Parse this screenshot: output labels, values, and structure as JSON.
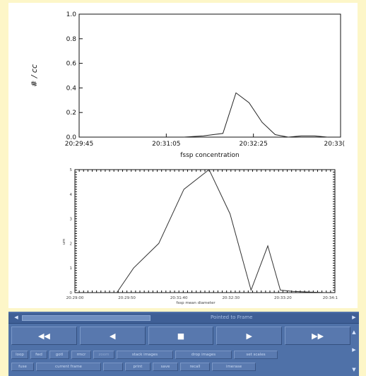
{
  "chart_data": [
    {
      "type": "line",
      "xlabel": "fssp concentration",
      "ylabel": "# / cc",
      "x_tick_labels": [
        "20:29:45",
        "20:31:05",
        "20:32:25",
        "20:33("
      ],
      "y_tick_labels": [
        "0.0",
        "0.2",
        "0.4",
        "0.6",
        "0.8",
        "1.0"
      ],
      "xlim": [
        "20:29:45",
        "20:33:05"
      ],
      "ylim": [
        0,
        1.0
      ],
      "x": [
        "20:31:05",
        "20:31:20",
        "20:31:35",
        "20:31:45",
        "20:31:55",
        "20:32:05",
        "20:32:15",
        "20:32:25",
        "20:32:35",
        "20:32:45",
        "20:32:55"
      ],
      "values": [
        0.0,
        0.01,
        0.03,
        0.36,
        0.28,
        0.12,
        0.02,
        0.0,
        0.01,
        0.01,
        0.0
      ]
    },
    {
      "type": "line",
      "xlabel": "fssp mean diameter",
      "ylabel": "um",
      "x_tick_labels": [
        "20:29:00",
        "20:29:50",
        "20:31:40",
        "20:32:30",
        "20:33:20",
        "20:34:1"
      ],
      "y_tick_labels": [
        "0",
        "1",
        "2",
        "3",
        "4",
        "5"
      ],
      "ylim": [
        0,
        5
      ],
      "x": [
        "20:29:50",
        "20:30:10",
        "20:30:40",
        "20:31:10",
        "20:31:40",
        "20:32:05",
        "20:32:30",
        "20:32:50",
        "20:33:05",
        "20:33:20",
        "20:33:40",
        "20:34:00"
      ],
      "values": [
        0.0,
        1.0,
        2.0,
        4.2,
        5.0,
        3.2,
        0.1,
        1.9,
        0.1,
        0.05,
        0.02,
        0.0
      ]
    }
  ],
  "controls": {
    "status_text": "Pointed to Frame",
    "transport": [
      "◀◀",
      "◀",
      "■",
      "▶",
      "▶▶"
    ],
    "row1": [
      "loop",
      "fwd",
      "gotl",
      "rmcr",
      "zoom",
      "stack images",
      "drop images",
      "set scales"
    ],
    "row2": [
      "fuse",
      "current frame",
      "",
      "print",
      "save",
      "recall",
      "imerase"
    ]
  }
}
